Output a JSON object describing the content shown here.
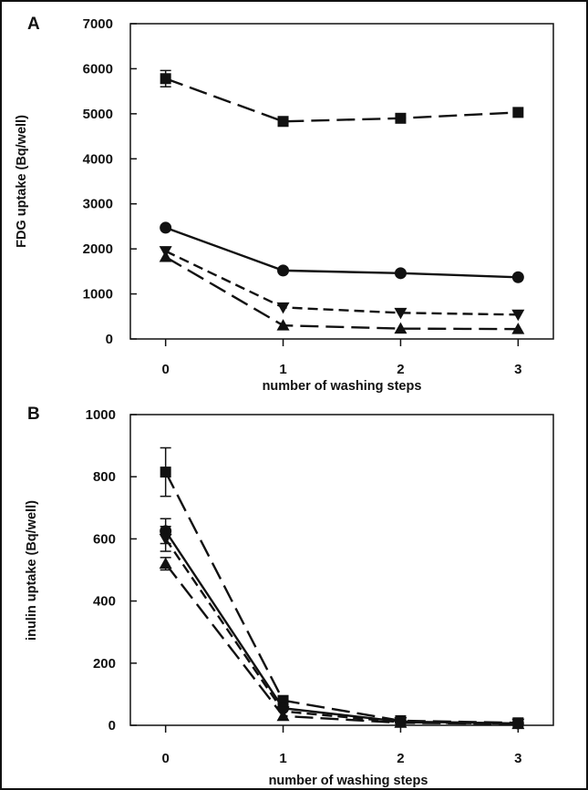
{
  "chart_data": [
    {
      "type": "line",
      "panel_label": "A",
      "title": "",
      "xlabel": "number of washing steps",
      "ylabel": "FDG uptake (Bq/well)",
      "x": [
        0,
        1,
        2,
        3
      ],
      "x_ticks": [
        0,
        1,
        2,
        3
      ],
      "xlim": [
        -0.3,
        3.3
      ],
      "ylim": [
        0,
        7000
      ],
      "y_ticks": [
        0,
        1000,
        2000,
        3000,
        4000,
        5000,
        6000,
        7000
      ],
      "grid": false,
      "legend": "none",
      "series": [
        {
          "marker": "square",
          "dash": "long",
          "values": [
            5780,
            4830,
            4900,
            5030
          ],
          "errors": [
            180,
            40,
            30,
            30
          ]
        },
        {
          "marker": "circle",
          "dash": "solid",
          "values": [
            2470,
            1520,
            1460,
            1370
          ],
          "errors": [
            30,
            30,
            30,
            30
          ]
        },
        {
          "marker": "triangle-down",
          "dash": "short",
          "values": [
            1950,
            700,
            580,
            540
          ],
          "errors": [
            60,
            30,
            30,
            30
          ]
        },
        {
          "marker": "triangle-up",
          "dash": "long",
          "values": [
            1820,
            300,
            230,
            220
          ],
          "errors": [
            60,
            30,
            30,
            30
          ]
        }
      ]
    },
    {
      "type": "line",
      "panel_label": "B",
      "title": "",
      "xlabel": "number of washing steps",
      "ylabel": "inulin uptake (Bq/well)",
      "x": [
        0,
        1,
        2,
        3
      ],
      "x_ticks": [
        0,
        1,
        2,
        3
      ],
      "xlim": [
        -0.3,
        3.3
      ],
      "ylim": [
        0,
        1000
      ],
      "y_ticks": [
        0,
        200,
        400,
        600,
        800,
        1000
      ],
      "grid": false,
      "legend": "none",
      "series": [
        {
          "marker": "square",
          "dash": "long",
          "values": [
            815,
            80,
            15,
            8
          ],
          "errors": [
            78,
            5,
            4,
            3
          ]
        },
        {
          "marker": "circle",
          "dash": "solid",
          "values": [
            625,
            55,
            12,
            6
          ],
          "errors": [
            40,
            5,
            4,
            3
          ]
        },
        {
          "marker": "triangle-down",
          "dash": "short",
          "values": [
            600,
            45,
            10,
            5
          ],
          "errors": [
            40,
            5,
            4,
            3
          ]
        },
        {
          "marker": "triangle-up",
          "dash": "long",
          "values": [
            520,
            30,
            8,
            4
          ],
          "errors": [
            20,
            5,
            4,
            3
          ]
        }
      ]
    }
  ],
  "colors": {
    "ink": "#111111",
    "background": "#ffffff"
  }
}
